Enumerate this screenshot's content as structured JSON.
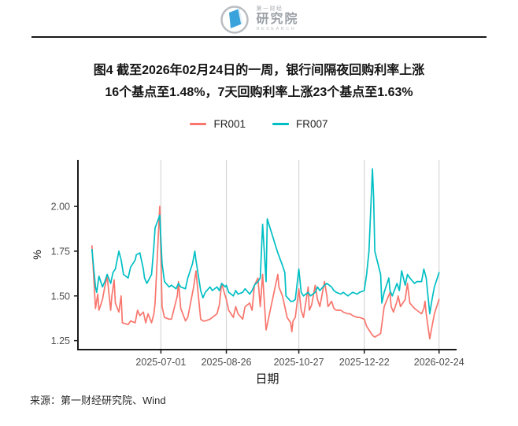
{
  "header": {
    "logo": {
      "brand_top": "第一财经",
      "brand_main": "研究院",
      "brand_sub": "RESEARCH",
      "accent_color": "#3BA3DB",
      "ring_color": "#b9bdc1"
    }
  },
  "title": {
    "line1": "图4 截至2026年02月24日的一周，银行间隔夜回购利率上涨",
    "line2": "16个基点至1.48%，7天回购利率上涨23个基点至1.63%"
  },
  "footer": {
    "source": "来源：第一财经研究院、Wind"
  },
  "chart_data": {
    "type": "line",
    "title": "",
    "xlabel": "日期",
    "ylabel": "%",
    "legend_position": "top",
    "grid": "vertical-only",
    "grid_color": "#d6d6d6",
    "axis_color": "#1a1a1a",
    "tick_label_color": "#4d4d4d",
    "x_domain": [
      "2025-04-21",
      "2026-03-11"
    ],
    "ylim": [
      1.2,
      2.26
    ],
    "x_ticks": [
      "2025-07-01",
      "2025-08-26",
      "2025-10-27",
      "2025-12-22",
      "2026-02-24"
    ],
    "y_ticks": [
      1.25,
      1.5,
      1.75,
      2.0
    ],
    "y_tick_labels": [
      "1.25",
      "1.50",
      "1.75",
      "2.00"
    ],
    "series": [
      {
        "name": "FR001",
        "color": "#F8766D",
        "points": [
          [
            "2025-05-03",
            1.78
          ],
          [
            "2025-05-06",
            1.43
          ],
          [
            "2025-05-08",
            1.51
          ],
          [
            "2025-05-09",
            1.42
          ],
          [
            "2025-05-12",
            1.48
          ],
          [
            "2025-05-14",
            1.55
          ],
          [
            "2025-05-16",
            1.61
          ],
          [
            "2025-05-19",
            1.42
          ],
          [
            "2025-05-20",
            1.5
          ],
          [
            "2025-05-22",
            1.59
          ],
          [
            "2025-05-23",
            1.46
          ],
          [
            "2025-05-26",
            1.41
          ],
          [
            "2025-05-28",
            1.5
          ],
          [
            "2025-05-29",
            1.35
          ],
          [
            "2025-06-03",
            1.34
          ],
          [
            "2025-06-05",
            1.36
          ],
          [
            "2025-06-09",
            1.35
          ],
          [
            "2025-06-11",
            1.42
          ],
          [
            "2025-06-13",
            1.39
          ],
          [
            "2025-06-16",
            1.41
          ],
          [
            "2025-06-18",
            1.35
          ],
          [
            "2025-06-20",
            1.4
          ],
          [
            "2025-06-23",
            1.35
          ],
          [
            "2025-06-25",
            1.4
          ],
          [
            "2025-06-26",
            1.46
          ],
          [
            "2025-06-30",
            2.0
          ],
          [
            "2025-07-02",
            1.44
          ],
          [
            "2025-07-04",
            1.38
          ],
          [
            "2025-07-08",
            1.37
          ],
          [
            "2025-07-10",
            1.37
          ],
          [
            "2025-07-15",
            1.5
          ],
          [
            "2025-07-16",
            1.58
          ],
          [
            "2025-07-18",
            1.43
          ],
          [
            "2025-07-22",
            1.36
          ],
          [
            "2025-07-24",
            1.38
          ],
          [
            "2025-07-29",
            1.55
          ],
          [
            "2025-07-31",
            1.64
          ],
          [
            "2025-08-04",
            1.37
          ],
          [
            "2025-08-06",
            1.36
          ],
          [
            "2025-08-08",
            1.36
          ],
          [
            "2025-08-12",
            1.37
          ],
          [
            "2025-08-14",
            1.38
          ],
          [
            "2025-08-18",
            1.4
          ],
          [
            "2025-08-20",
            1.45
          ],
          [
            "2025-08-22",
            1.57
          ],
          [
            "2025-08-25",
            1.5
          ],
          [
            "2025-08-26",
            1.48
          ],
          [
            "2025-08-28",
            1.42
          ],
          [
            "2025-09-01",
            1.38
          ],
          [
            "2025-09-03",
            1.44
          ],
          [
            "2025-09-05",
            1.4
          ],
          [
            "2025-09-09",
            1.37
          ],
          [
            "2025-09-11",
            1.44
          ],
          [
            "2025-09-15",
            1.46
          ],
          [
            "2025-09-17",
            1.42
          ],
          [
            "2025-09-19",
            1.56
          ],
          [
            "2025-09-22",
            1.6
          ],
          [
            "2025-09-24",
            1.44
          ],
          [
            "2025-09-26",
            1.62
          ],
          [
            "2025-09-29",
            1.31
          ],
          [
            "2025-10-09",
            1.62
          ],
          [
            "2025-10-10",
            1.55
          ],
          [
            "2025-10-13",
            1.5
          ],
          [
            "2025-10-15",
            1.44
          ],
          [
            "2025-10-17",
            1.38
          ],
          [
            "2025-10-20",
            1.35
          ],
          [
            "2025-10-21",
            1.3
          ],
          [
            "2025-10-22",
            1.36
          ],
          [
            "2025-10-24",
            1.38
          ],
          [
            "2025-10-27",
            1.54
          ],
          [
            "2025-10-29",
            1.42
          ],
          [
            "2025-10-31",
            1.38
          ],
          [
            "2025-11-04",
            1.55
          ],
          [
            "2025-11-05",
            1.42
          ],
          [
            "2025-11-07",
            1.45
          ],
          [
            "2025-11-10",
            1.56
          ],
          [
            "2025-11-12",
            1.48
          ],
          [
            "2025-11-14",
            1.44
          ],
          [
            "2025-11-18",
            1.58
          ],
          [
            "2025-11-20",
            1.5
          ],
          [
            "2025-11-21",
            1.44
          ],
          [
            "2025-11-24",
            1.47
          ],
          [
            "2025-11-26",
            1.43
          ],
          [
            "2025-11-28",
            1.42
          ],
          [
            "2025-12-02",
            1.42
          ],
          [
            "2025-12-04",
            1.41
          ],
          [
            "2025-12-08",
            1.4
          ],
          [
            "2025-12-10",
            1.4
          ],
          [
            "2025-12-12",
            1.39
          ],
          [
            "2025-12-16",
            1.38
          ],
          [
            "2025-12-18",
            1.38
          ],
          [
            "2025-12-22",
            1.37
          ],
          [
            "2025-12-24",
            1.33
          ],
          [
            "2025-12-26",
            1.31
          ],
          [
            "2025-12-29",
            1.28
          ],
          [
            "2025-12-31",
            1.27
          ],
          [
            "2026-01-05",
            1.29
          ],
          [
            "2026-01-06",
            1.34
          ],
          [
            "2026-01-08",
            1.44
          ],
          [
            "2026-01-13",
            1.52
          ],
          [
            "2026-01-14",
            1.44
          ],
          [
            "2026-01-16",
            1.41
          ],
          [
            "2026-01-19",
            1.47
          ],
          [
            "2026-01-20",
            1.5
          ],
          [
            "2026-01-22",
            1.44
          ],
          [
            "2026-01-26",
            1.48
          ],
          [
            "2026-01-28",
            1.57
          ],
          [
            "2026-01-30",
            1.46
          ],
          [
            "2026-02-03",
            1.43
          ],
          [
            "2026-02-05",
            1.42
          ],
          [
            "2026-02-09",
            1.4
          ],
          [
            "2026-02-11",
            1.43
          ],
          [
            "2026-02-12",
            1.47
          ],
          [
            "2026-02-13",
            1.4
          ],
          [
            "2026-02-16",
            1.26
          ],
          [
            "2026-02-18",
            1.33
          ],
          [
            "2026-02-20",
            1.4
          ],
          [
            "2026-02-24",
            1.48
          ]
        ]
      },
      {
        "name": "FR007",
        "color": "#00BFC4",
        "points": [
          [
            "2025-05-03",
            1.76
          ],
          [
            "2025-05-06",
            1.55
          ],
          [
            "2025-05-07",
            1.52
          ],
          [
            "2025-05-09",
            1.61
          ],
          [
            "2025-05-12",
            1.55
          ],
          [
            "2025-05-14",
            1.58
          ],
          [
            "2025-05-16",
            1.62
          ],
          [
            "2025-05-19",
            1.57
          ],
          [
            "2025-05-21",
            1.63
          ],
          [
            "2025-05-23",
            1.65
          ],
          [
            "2025-05-26",
            1.75
          ],
          [
            "2025-05-28",
            1.7
          ],
          [
            "2025-05-30",
            1.62
          ],
          [
            "2025-06-03",
            1.6
          ],
          [
            "2025-06-05",
            1.66
          ],
          [
            "2025-06-09",
            1.7
          ],
          [
            "2025-06-10",
            1.73
          ],
          [
            "2025-06-13",
            1.74
          ],
          [
            "2025-06-16",
            1.65
          ],
          [
            "2025-06-17",
            1.6
          ],
          [
            "2025-06-19",
            1.57
          ],
          [
            "2025-06-23",
            1.62
          ],
          [
            "2025-06-25",
            1.78
          ],
          [
            "2025-06-26",
            1.88
          ],
          [
            "2025-06-30",
            1.95
          ],
          [
            "2025-07-02",
            1.68
          ],
          [
            "2025-07-04",
            1.58
          ],
          [
            "2025-07-08",
            1.55
          ],
          [
            "2025-07-10",
            1.56
          ],
          [
            "2025-07-14",
            1.54
          ],
          [
            "2025-07-16",
            1.57
          ],
          [
            "2025-07-18",
            1.55
          ],
          [
            "2025-07-22",
            1.54
          ],
          [
            "2025-07-24",
            1.6
          ],
          [
            "2025-07-28",
            1.68
          ],
          [
            "2025-07-30",
            1.75
          ],
          [
            "2025-07-31",
            1.7
          ],
          [
            "2025-08-04",
            1.53
          ],
          [
            "2025-08-06",
            1.49
          ],
          [
            "2025-08-08",
            1.52
          ],
          [
            "2025-08-12",
            1.55
          ],
          [
            "2025-08-14",
            1.53
          ],
          [
            "2025-08-18",
            1.55
          ],
          [
            "2025-08-20",
            1.53
          ],
          [
            "2025-08-22",
            1.57
          ],
          [
            "2025-08-25",
            1.55
          ],
          [
            "2025-08-26",
            1.56
          ],
          [
            "2025-08-28",
            1.52
          ],
          [
            "2025-09-01",
            1.5
          ],
          [
            "2025-09-03",
            1.53
          ],
          [
            "2025-09-05",
            1.51
          ],
          [
            "2025-09-09",
            1.52
          ],
          [
            "2025-09-11",
            1.54
          ],
          [
            "2025-09-15",
            1.51
          ],
          [
            "2025-09-17",
            1.53
          ],
          [
            "2025-09-19",
            1.56
          ],
          [
            "2025-09-22",
            1.58
          ],
          [
            "2025-09-24",
            1.6
          ],
          [
            "2025-09-26",
            1.9
          ],
          [
            "2025-09-29",
            1.58
          ],
          [
            "2025-09-30",
            1.93
          ],
          [
            "2025-10-09",
            1.74
          ],
          [
            "2025-10-13",
            1.67
          ],
          [
            "2025-10-15",
            1.63
          ],
          [
            "2025-10-16",
            1.5
          ],
          [
            "2025-10-20",
            1.47
          ],
          [
            "2025-10-22",
            1.47
          ],
          [
            "2025-10-24",
            1.48
          ],
          [
            "2025-10-27",
            1.65
          ],
          [
            "2025-10-29",
            1.52
          ],
          [
            "2025-10-31",
            1.5
          ],
          [
            "2025-11-04",
            1.52
          ],
          [
            "2025-11-06",
            1.5
          ],
          [
            "2025-11-10",
            1.52
          ],
          [
            "2025-11-12",
            1.55
          ],
          [
            "2025-11-14",
            1.53
          ],
          [
            "2025-11-18",
            1.56
          ],
          [
            "2025-11-20",
            1.57
          ],
          [
            "2025-11-24",
            1.55
          ],
          [
            "2025-11-26",
            1.53
          ],
          [
            "2025-11-28",
            1.52
          ],
          [
            "2025-12-02",
            1.51
          ],
          [
            "2025-12-04",
            1.52
          ],
          [
            "2025-12-08",
            1.5
          ],
          [
            "2025-12-10",
            1.51
          ],
          [
            "2025-12-12",
            1.52
          ],
          [
            "2025-12-16",
            1.51
          ],
          [
            "2025-12-18",
            1.52
          ],
          [
            "2025-12-22",
            1.53
          ],
          [
            "2025-12-24",
            1.62
          ],
          [
            "2025-12-26",
            1.75
          ],
          [
            "2025-12-29",
            2.21
          ],
          [
            "2025-12-30",
            2.05
          ],
          [
            "2025-12-31",
            1.75
          ],
          [
            "2026-01-05",
            1.62
          ],
          [
            "2026-01-06",
            1.46
          ],
          [
            "2026-01-08",
            1.52
          ],
          [
            "2026-01-12",
            1.6
          ],
          [
            "2026-01-13",
            1.53
          ],
          [
            "2026-01-15",
            1.5
          ],
          [
            "2026-01-19",
            1.57
          ],
          [
            "2026-01-21",
            1.53
          ],
          [
            "2026-01-23",
            1.64
          ],
          [
            "2026-01-26",
            1.56
          ],
          [
            "2026-01-28",
            1.62
          ],
          [
            "2026-01-30",
            1.6
          ],
          [
            "2026-02-03",
            1.57
          ],
          [
            "2026-02-05",
            1.58
          ],
          [
            "2026-02-09",
            1.58
          ],
          [
            "2026-02-11",
            1.65
          ],
          [
            "2026-02-13",
            1.6
          ],
          [
            "2026-02-16",
            1.4
          ],
          [
            "2026-02-18",
            1.48
          ],
          [
            "2026-02-20",
            1.55
          ],
          [
            "2026-02-24",
            1.63
          ]
        ]
      }
    ]
  }
}
